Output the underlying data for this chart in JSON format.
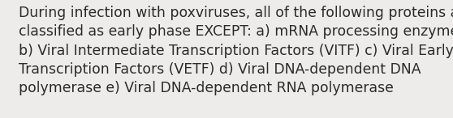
{
  "line1": "During infection with poxviruses, all of the following proteins are",
  "line2": "classified as early phase EXCEPT: a) mRNA processing enzymes",
  "line3": "b) Viral Intermediate Transcription Factors (VITF) c) Viral Early",
  "line4": "Transcription Factors (VETF) d) Viral DNA-dependent DNA",
  "line5": "polymerase e) Viral DNA-dependent RNA polymerase",
  "background_color": "#edecea",
  "text_color": "#2b2b2b",
  "font_size": 12.4,
  "fig_width": 5.58,
  "fig_height": 1.46,
  "dpi": 100
}
